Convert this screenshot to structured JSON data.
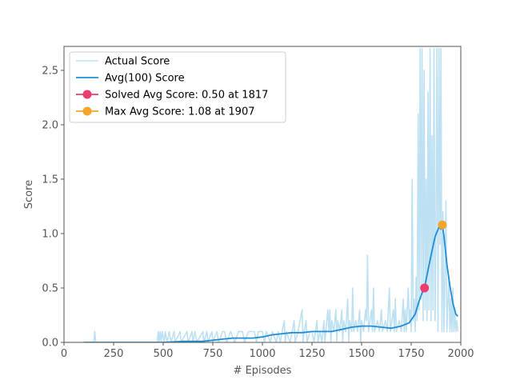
{
  "chart_data": {
    "type": "line",
    "xlabel": "# Episodes",
    "ylabel": "Score",
    "xlim": [
      0,
      2000
    ],
    "ylim": [
      0,
      2.72
    ],
    "xticks": [
      0,
      250,
      500,
      750,
      1000,
      1250,
      1500,
      1750,
      2000
    ],
    "yticks": [
      0.0,
      0.5,
      1.0,
      1.5,
      2.0,
      2.5
    ],
    "ytick_labels": [
      "0.0",
      "0.5",
      "1.0",
      "1.5",
      "2.0",
      "2.5"
    ],
    "grid": false,
    "legend_position": "top-left",
    "series": [
      {
        "name": "Actual Score",
        "style": "line",
        "color": "#bde0f2",
        "points": [
          [
            0,
            0
          ],
          [
            150,
            0
          ],
          [
            155,
            0.1
          ],
          [
            160,
            0
          ],
          [
            470,
            0
          ],
          [
            475,
            0.1
          ],
          [
            480,
            0
          ],
          [
            485,
            0.1
          ],
          [
            490,
            0
          ],
          [
            495,
            0.1
          ],
          [
            505,
            0
          ],
          [
            510,
            0.1
          ],
          [
            520,
            0
          ],
          [
            530,
            0.1
          ],
          [
            540,
            0
          ],
          [
            555,
            0.1
          ],
          [
            560,
            0
          ],
          [
            585,
            0.1
          ],
          [
            590,
            0
          ],
          [
            620,
            0.1
          ],
          [
            625,
            0
          ],
          [
            645,
            0.1
          ],
          [
            650,
            0
          ],
          [
            660,
            0.1
          ],
          [
            670,
            0
          ],
          [
            700,
            0.1
          ],
          [
            705,
            0
          ],
          [
            720,
            0.1
          ],
          [
            725,
            0
          ],
          [
            745,
            0.1
          ],
          [
            750,
            0
          ],
          [
            770,
            0.1
          ],
          [
            780,
            0
          ],
          [
            800,
            0.1
          ],
          [
            810,
            0.1
          ],
          [
            820,
            0
          ],
          [
            840,
            0.1
          ],
          [
            860,
            0
          ],
          [
            880,
            0.1
          ],
          [
            900,
            0.1
          ],
          [
            910,
            0
          ],
          [
            930,
            0.1
          ],
          [
            960,
            0.1
          ],
          [
            970,
            0
          ],
          [
            980,
            0.1
          ],
          [
            1000,
            0.1
          ],
          [
            1010,
            0
          ],
          [
            1020,
            0.1
          ],
          [
            1040,
            0
          ],
          [
            1050,
            0.1
          ],
          [
            1070,
            0
          ],
          [
            1080,
            0.1
          ],
          [
            1090,
            0
          ],
          [
            1100,
            0.1
          ],
          [
            1110,
            0.2
          ],
          [
            1115,
            0
          ],
          [
            1120,
            0.1
          ],
          [
            1140,
            0
          ],
          [
            1150,
            0.1
          ],
          [
            1160,
            0.2
          ],
          [
            1165,
            0
          ],
          [
            1180,
            0.1
          ],
          [
            1200,
            0.3
          ],
          [
            1205,
            0
          ],
          [
            1210,
            0.1
          ],
          [
            1220,
            0.2
          ],
          [
            1225,
            0
          ],
          [
            1240,
            0.1
          ],
          [
            1250,
            0.1
          ],
          [
            1260,
            0
          ],
          [
            1275,
            0.2
          ],
          [
            1280,
            0
          ],
          [
            1290,
            0.1
          ],
          [
            1300,
            0
          ],
          [
            1310,
            0.2
          ],
          [
            1315,
            0
          ],
          [
            1330,
            0.3
          ],
          [
            1335,
            0.1
          ],
          [
            1340,
            0.3
          ],
          [
            1345,
            0
          ],
          [
            1350,
            0.2
          ],
          [
            1360,
            0.1
          ],
          [
            1370,
            0.3
          ],
          [
            1375,
            0
          ],
          [
            1380,
            0.2
          ],
          [
            1390,
            0.1
          ],
          [
            1400,
            0.3
          ],
          [
            1405,
            0
          ],
          [
            1410,
            0.2
          ],
          [
            1420,
            0.1
          ],
          [
            1430,
            0.4
          ],
          [
            1435,
            0
          ],
          [
            1440,
            0.2
          ],
          [
            1450,
            0.1
          ],
          [
            1455,
            0.5
          ],
          [
            1460,
            0.1
          ],
          [
            1470,
            0.2
          ],
          [
            1480,
            0.1
          ],
          [
            1490,
            0.3
          ],
          [
            1495,
            0
          ],
          [
            1500,
            0.2
          ],
          [
            1510,
            0.1
          ],
          [
            1520,
            0.3
          ],
          [
            1525,
            0.2
          ],
          [
            1530,
            0.8
          ],
          [
            1535,
            0.1
          ],
          [
            1550,
            0.3
          ],
          [
            1555,
            0.1
          ],
          [
            1560,
            0.5
          ],
          [
            1565,
            0.1
          ],
          [
            1580,
            0.2
          ],
          [
            1590,
            0.1
          ],
          [
            1600,
            0.3
          ],
          [
            1605,
            0.1
          ],
          [
            1620,
            0.2
          ],
          [
            1630,
            0.1
          ],
          [
            1640,
            0.5
          ],
          [
            1645,
            0.1
          ],
          [
            1660,
            0.3
          ],
          [
            1665,
            0.1
          ],
          [
            1670,
            0.4
          ],
          [
            1675,
            0.1
          ],
          [
            1690,
            0.2
          ],
          [
            1700,
            0.1
          ],
          [
            1710,
            0.4
          ],
          [
            1715,
            0.1
          ],
          [
            1720,
            0.3
          ],
          [
            1725,
            0.1
          ],
          [
            1735,
            0.5
          ],
          [
            1740,
            0.2
          ],
          [
            1745,
            0.3
          ],
          [
            1750,
            0.1
          ],
          [
            1755,
            1.5
          ],
          [
            1760,
            0.2
          ],
          [
            1765,
            0.4
          ],
          [
            1770,
            0.1
          ],
          [
            1775,
            0.6
          ],
          [
            1780,
            0.2
          ],
          [
            1785,
            2.1
          ],
          [
            1790,
            0.3
          ],
          [
            1795,
            2.7
          ],
          [
            1800,
            0.4
          ],
          [
            1805,
            2.7
          ],
          [
            1810,
            0.2
          ],
          [
            1815,
            2.5
          ],
          [
            1820,
            0.3
          ],
          [
            1825,
            1.5
          ],
          [
            1830,
            0.2
          ],
          [
            1835,
            2.3
          ],
          [
            1840,
            0.3
          ],
          [
            1845,
            2.7
          ],
          [
            1850,
            0.2
          ],
          [
            1855,
            1.9
          ],
          [
            1860,
            0.3
          ],
          [
            1865,
            2.7
          ],
          [
            1870,
            0.2
          ],
          [
            1875,
            1.1
          ],
          [
            1880,
            2.7
          ],
          [
            1885,
            0.1
          ],
          [
            1890,
            2.7
          ],
          [
            1895,
            0.9
          ],
          [
            1900,
            2.7
          ],
          [
            1905,
            0.1
          ],
          [
            1910,
            1.2
          ],
          [
            1915,
            0.1
          ],
          [
            1920,
            0.6
          ],
          [
            1925,
            1.3
          ],
          [
            1930,
            0.1
          ],
          [
            1940,
            0.6
          ],
          [
            1945,
            0.1
          ],
          [
            1950,
            0.4
          ],
          [
            1955,
            0.1
          ],
          [
            1960,
            0.5
          ],
          [
            1965,
            0.1
          ],
          [
            1970,
            0.3
          ],
          [
            1975,
            0.1
          ],
          [
            1980,
            0.2
          ],
          [
            1985,
            0.1
          ]
        ]
      },
      {
        "name": "Avg(100) Score",
        "style": "line",
        "color": "#1f8dd6",
        "points": [
          [
            100,
            0.0
          ],
          [
            500,
            0.0
          ],
          [
            600,
            0.01
          ],
          [
            700,
            0.01
          ],
          [
            750,
            0.02
          ],
          [
            800,
            0.03
          ],
          [
            850,
            0.04
          ],
          [
            900,
            0.04
          ],
          [
            950,
            0.04
          ],
          [
            1000,
            0.05
          ],
          [
            1050,
            0.07
          ],
          [
            1100,
            0.08
          ],
          [
            1150,
            0.09
          ],
          [
            1200,
            0.09
          ],
          [
            1250,
            0.1
          ],
          [
            1300,
            0.1
          ],
          [
            1350,
            0.1
          ],
          [
            1400,
            0.12
          ],
          [
            1450,
            0.14
          ],
          [
            1500,
            0.15
          ],
          [
            1550,
            0.15
          ],
          [
            1600,
            0.14
          ],
          [
            1650,
            0.13
          ],
          [
            1700,
            0.15
          ],
          [
            1740,
            0.18
          ],
          [
            1770,
            0.26
          ],
          [
            1790,
            0.38
          ],
          [
            1810,
            0.48
          ],
          [
            1817,
            0.5
          ],
          [
            1830,
            0.62
          ],
          [
            1850,
            0.8
          ],
          [
            1870,
            0.97
          ],
          [
            1890,
            1.06
          ],
          [
            1900,
            1.04
          ],
          [
            1907,
            1.08
          ],
          [
            1915,
            0.98
          ],
          [
            1930,
            0.72
          ],
          [
            1945,
            0.52
          ],
          [
            1960,
            0.36
          ],
          [
            1975,
            0.26
          ],
          [
            1985,
            0.24
          ]
        ]
      }
    ],
    "markers": [
      {
        "name": "Solved Avg Score: 0.50 at 1817",
        "x": 1817,
        "y": 0.5,
        "color": "#ec3d6c"
      },
      {
        "name": "Max Avg Score: 1.08 at 1907",
        "x": 1907,
        "y": 1.08,
        "color": "#f5a52b"
      }
    ]
  }
}
